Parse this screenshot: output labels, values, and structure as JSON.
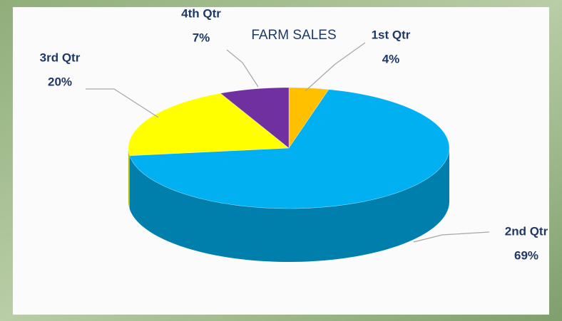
{
  "chart_data": {
    "type": "pie",
    "title": "FARM SALES",
    "categories": [
      "1st Qtr",
      "2nd Qtr",
      "3rd Qtr",
      "4th Qtr"
    ],
    "values": [
      4,
      69,
      20,
      7
    ],
    "value_labels": [
      "4%",
      "69%",
      "20%",
      "7%"
    ],
    "colors": [
      "#ffc000",
      "#00b0f0",
      "#ffff00",
      "#7030a0"
    ]
  }
}
